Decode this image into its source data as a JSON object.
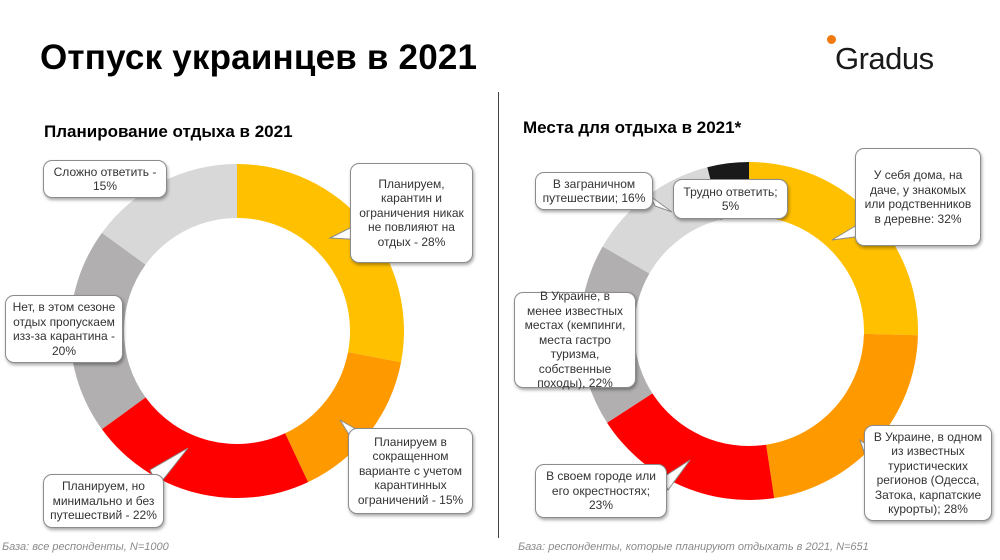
{
  "page": {
    "title": "Отпуск украинцев в 2021",
    "logo_text": "Gradus"
  },
  "colors": {
    "yellow": "#ffc000",
    "orange": "#ff9900",
    "red": "#ff0000",
    "gray_dark": "#b1afaf",
    "gray_light": "#d8d8d8",
    "black": "#1a1a1a"
  },
  "chart_data": [
    {
      "type": "pie",
      "donut": true,
      "title": "Планирование отдыха в 2021",
      "footnote": "База: все респонденты, N=1000",
      "slices": [
        {
          "label": "Планируем, карантин и ограничения никак не повлияют на отдых - 28%",
          "value": 28,
          "color": "#ffc000"
        },
        {
          "label": "Планируем в сокращенном варианте с учетом карантинных ограничений - 15%",
          "value": 15,
          "color": "#ff9900"
        },
        {
          "label": "Планируем, но минимально и без путешествий - 22%",
          "value": 22,
          "color": "#ff0000"
        },
        {
          "label": "Нет, в этом сезоне отдых пропускаем изз-за карантина - 20%",
          "value": 20,
          "color": "#b1afaf"
        },
        {
          "label": "Сложно ответить - 15%",
          "value": 15,
          "color": "#d8d8d8"
        }
      ]
    },
    {
      "type": "pie",
      "donut": true,
      "title": "Места для отдыха в 2021*",
      "footnote": "База: респонденты, которые планируют отдыхать в 2021, N=651",
      "slices": [
        {
          "label": "У себя дома, на даче, у знакомых или родственников в деревне: 32%",
          "value": 32,
          "color": "#ffc000"
        },
        {
          "label": "В Украине, в одном из известных туристических регионов (Одесса, Затока, карпатские курорты); 28%",
          "value": 28,
          "color": "#ff9900"
        },
        {
          "label": "В своем городе или его окрестностях; 23%",
          "value": 23,
          "color": "#ff0000"
        },
        {
          "label": "В Украине, в менее известных местах (кемпинги, места гастро туризма, собственные походы), 22%",
          "value": 22,
          "color": "#b1afaf"
        },
        {
          "label": "В заграничном путешествии; 16%",
          "value": 16,
          "color": "#d8d8d8"
        },
        {
          "label": "Трудно ответить; 5%",
          "value": 5,
          "color": "#1a1a1a"
        }
      ]
    }
  ]
}
